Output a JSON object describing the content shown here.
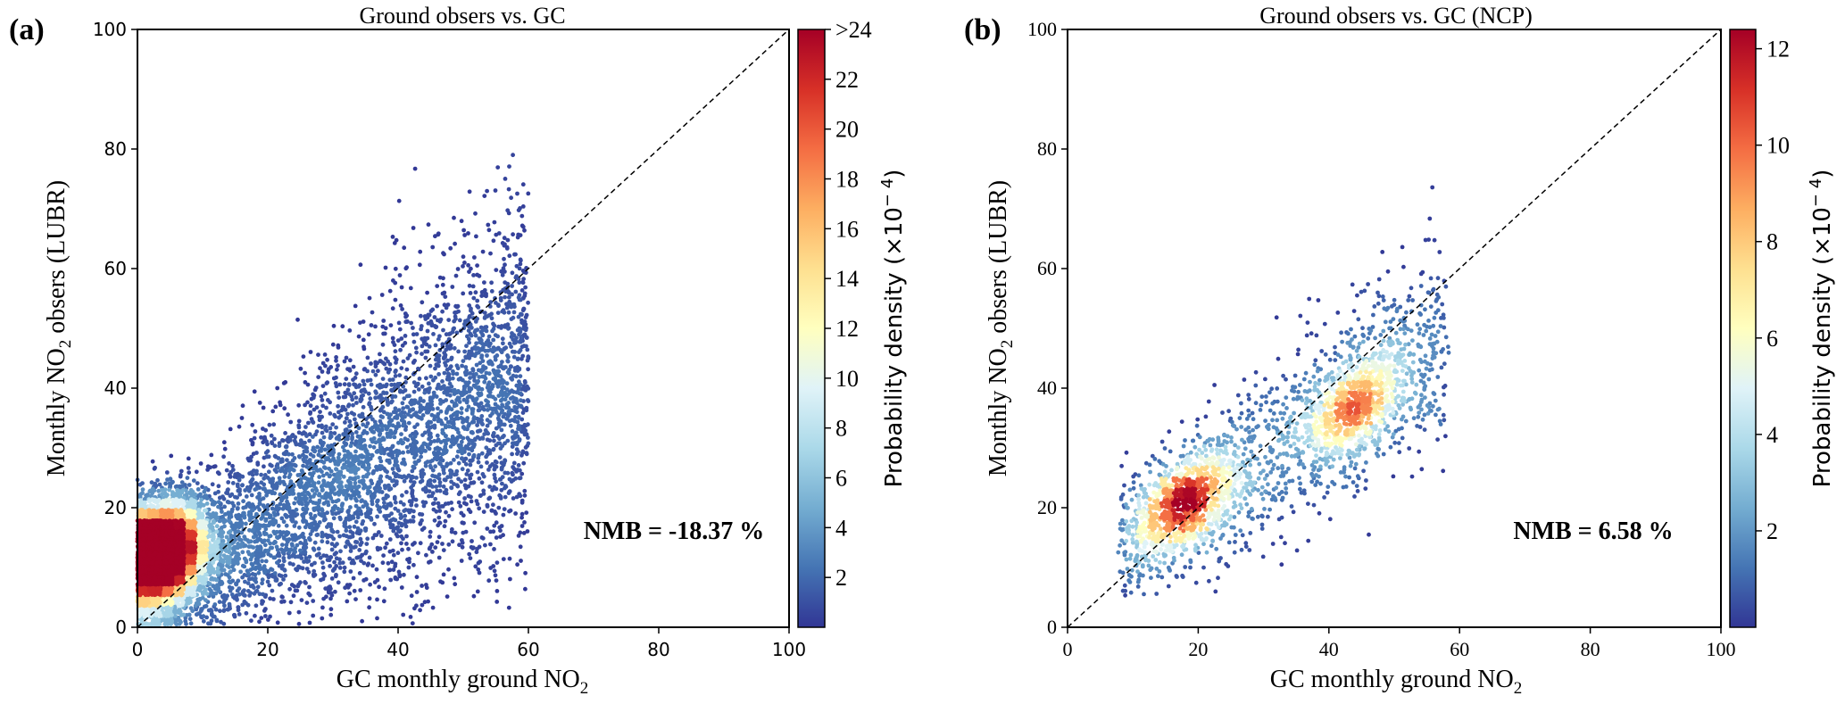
{
  "chart_data": [
    {
      "type": "scatter",
      "panel_label": "(a)",
      "title": "Ground obsers vs. GC",
      "xlabel": "GC monthly ground NO",
      "xlabel_sub": "2",
      "ylabel_pre": "Monthly NO",
      "ylabel_sub": "2",
      "ylabel_post": " obsers (LUBR)",
      "xlim": [
        0,
        100
      ],
      "ylim": [
        0,
        100
      ],
      "xticks": [
        "0",
        "20",
        "40",
        "60",
        "80",
        "100"
      ],
      "yticks": [
        "0",
        "20",
        "40",
        "60",
        "80",
        "100"
      ],
      "reference_line": "1:1 dashed",
      "annotation": "NMB = -18.37 %",
      "colorbar": {
        "label": "Probability density (×10",
        "label_sup": "− 4",
        "label_end": ")",
        "range": [
          0,
          24
        ],
        "ticks": [
          "2",
          "4",
          "6",
          "8",
          "10",
          "12",
          "14",
          "16",
          "18",
          "20",
          "22",
          ">24"
        ],
        "colormap": "RdYlBu_r"
      },
      "density_peak": {
        "x": 4,
        "y": 11
      }
    },
    {
      "type": "scatter",
      "panel_label": "(b)",
      "title": "Ground obsers vs. GC (NCP)",
      "xlabel": "GC monthly ground NO",
      "xlabel_sub": "2",
      "ylabel_pre": "Monthly NO",
      "ylabel_sub": "2",
      "ylabel_post": " obsers (LUBR)",
      "xlim": [
        0,
        100
      ],
      "ylim": [
        0,
        100
      ],
      "xticks": [
        "0",
        "20",
        "40",
        "60",
        "80",
        "100"
      ],
      "yticks": [
        "0",
        "20",
        "40",
        "60",
        "80",
        "100"
      ],
      "reference_line": "1:1 dashed",
      "annotation": "NMB = 6.58 %",
      "colorbar": {
        "label": "Probability density (×10",
        "label_sup": "− 4",
        "label_end": ")",
        "range": [
          0,
          12.4
        ],
        "ticks": [
          "2",
          "4",
          "6",
          "8",
          "10",
          "12"
        ],
        "colormap": "RdYlBu_r"
      },
      "density_peak": {
        "x": 18,
        "y": 21
      }
    }
  ]
}
